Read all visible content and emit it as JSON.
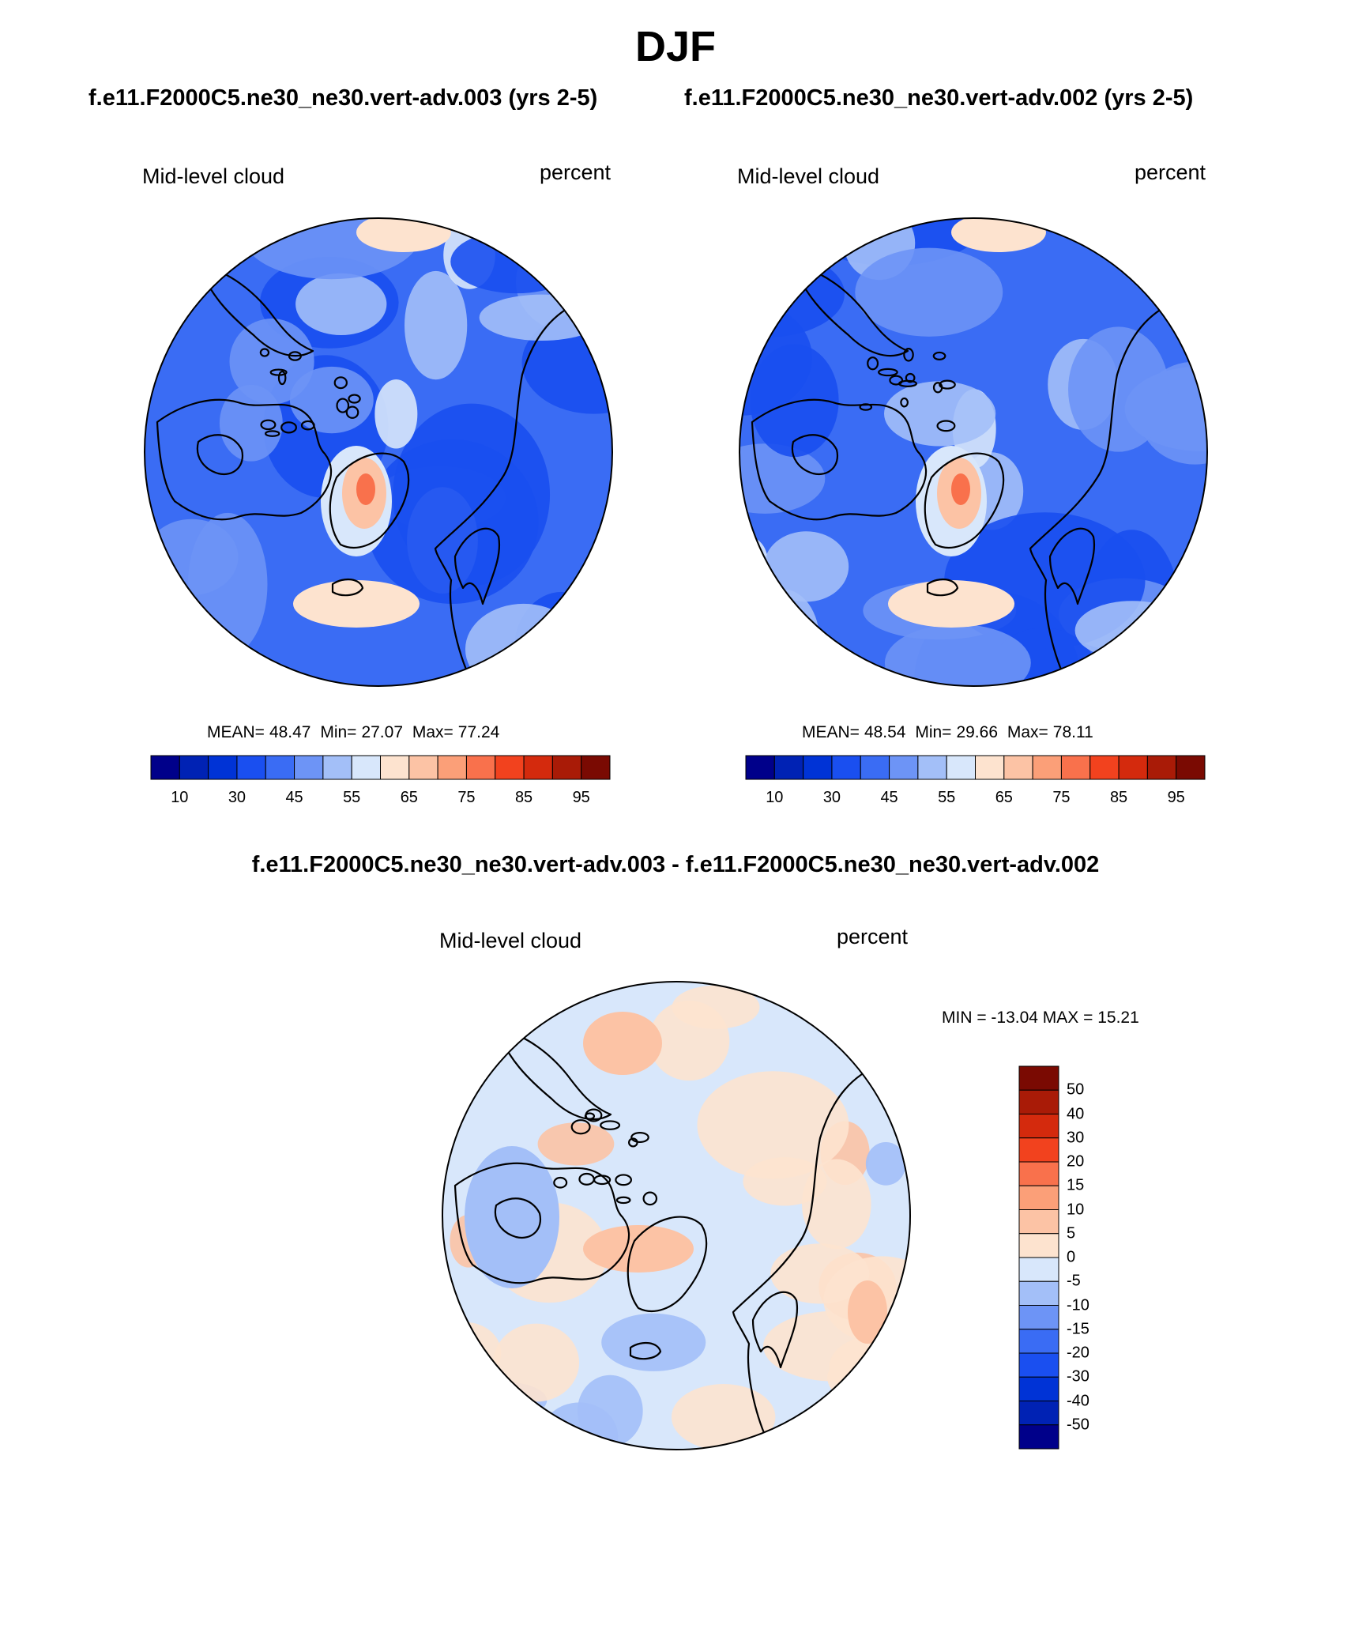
{
  "season": "DJF",
  "panels": [
    {
      "case_title": "f.e11.F2000C5.ne30_ne30.vert-adv.003 (yrs 2-5)",
      "variable": "Mid-level cloud",
      "units": "percent",
      "mean_label": "MEAN=",
      "mean": "48.47",
      "min_label": "Min=",
      "min": "27.07",
      "max_label": "Max=",
      "max": "77.24"
    },
    {
      "case_title": "f.e11.F2000C5.ne30_ne30.vert-adv.002 (yrs 2-5)",
      "variable": "Mid-level cloud",
      "units": "percent",
      "mean_label": "MEAN=",
      "mean": "48.54",
      "min_label": "Min=",
      "min": "29.66",
      "max_label": "Max=",
      "max": "78.11"
    }
  ],
  "abs_colorbar": {
    "colors": [
      "#00008a",
      "#0022b4",
      "#0033d6",
      "#1a4ff0",
      "#3a6cf4",
      "#6d94f6",
      "#a3bff8",
      "#d8e7fb",
      "#fde3cf",
      "#fcc3a5",
      "#fb9f78",
      "#f9714c",
      "#f2421e",
      "#d42a0d",
      "#a91b07",
      "#7a0a02"
    ],
    "labels": [
      "10",
      "30",
      "45",
      "55",
      "65",
      "75",
      "85",
      "95"
    ]
  },
  "diff_panel": {
    "title": "f.e11.F2000C5.ne30_ne30.vert-adv.003 - f.e11.F2000C5.ne30_ne30.vert-adv.002",
    "variable": "Mid-level cloud",
    "units": "percent",
    "minmax": "MIN = -13.04 MAX =  15.21"
  },
  "diff_colorbar": {
    "colors": [
      "#7a0a02",
      "#a91b07",
      "#d42a0d",
      "#f2421e",
      "#f9714c",
      "#fb9f78",
      "#fcc3a5",
      "#fde3cf",
      "#d8e7fb",
      "#a3bff8",
      "#6d94f6",
      "#3a6cf4",
      "#1a4ff0",
      "#0033d6",
      "#0022b4",
      "#00008a"
    ],
    "labels": [
      "50",
      "40",
      "30",
      "20",
      "15",
      "10",
      "5",
      "0",
      "-5",
      "-10",
      "-15",
      "-20",
      "-30",
      "-40",
      "-50"
    ]
  }
}
